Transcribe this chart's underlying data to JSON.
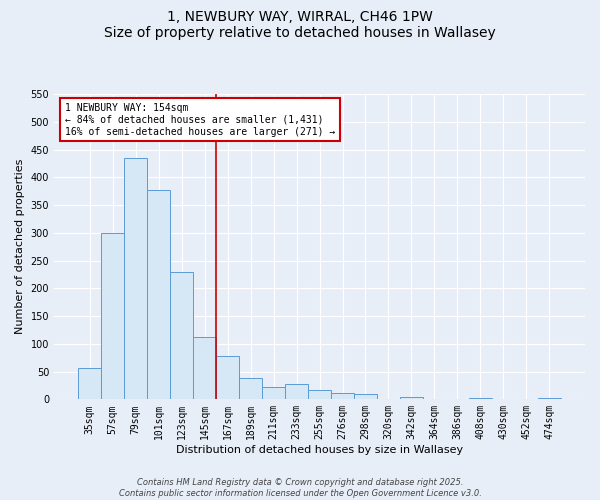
{
  "title": "1, NEWBURY WAY, WIRRAL, CH46 1PW",
  "subtitle": "Size of property relative to detached houses in Wallasey",
  "xlabel": "Distribution of detached houses by size in Wallasey",
  "ylabel": "Number of detached properties",
  "bar_labels": [
    "35sqm",
    "57sqm",
    "79sqm",
    "101sqm",
    "123sqm",
    "145sqm",
    "167sqm",
    "189sqm",
    "211sqm",
    "233sqm",
    "255sqm",
    "276sqm",
    "298sqm",
    "320sqm",
    "342sqm",
    "364sqm",
    "386sqm",
    "408sqm",
    "430sqm",
    "452sqm",
    "474sqm"
  ],
  "bar_values": [
    57,
    300,
    435,
    378,
    230,
    113,
    78,
    38,
    22,
    27,
    17,
    11,
    10,
    0,
    5,
    0,
    0,
    2,
    0,
    0,
    2
  ],
  "bar_color": "#d6e8f5",
  "bar_edge_color": "#5b9bd5",
  "vline_x": 5.5,
  "vline_color": "#cc0000",
  "ylim": [
    0,
    550
  ],
  "yticks": [
    0,
    50,
    100,
    150,
    200,
    250,
    300,
    350,
    400,
    450,
    500,
    550
  ],
  "annotation_text": "1 NEWBURY WAY: 154sqm\n← 84% of detached houses are smaller (1,431)\n16% of semi-detached houses are larger (271) →",
  "annotation_box_facecolor": "#ffffff",
  "annotation_box_edgecolor": "#cc0000",
  "footer1": "Contains HM Land Registry data © Crown copyright and database right 2025.",
  "footer2": "Contains public sector information licensed under the Open Government Licence v3.0.",
  "bg_color": "#e8eef8",
  "title_fontsize": 10,
  "subtitle_fontsize": 9,
  "axis_label_fontsize": 8,
  "tick_fontsize": 7,
  "annot_fontsize": 7,
  "footer_fontsize": 6
}
